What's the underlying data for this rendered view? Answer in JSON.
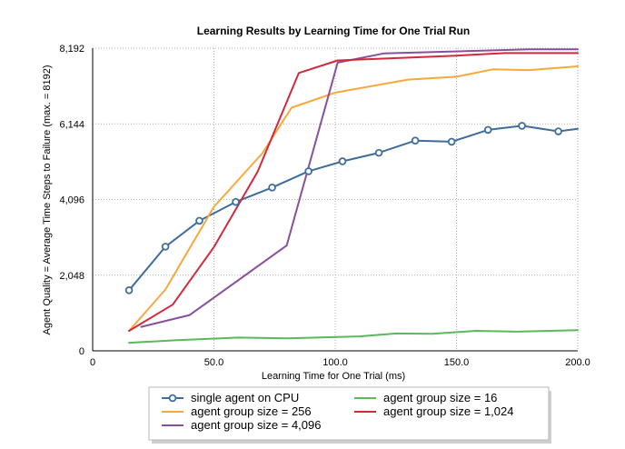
{
  "chart_data": {
    "type": "line",
    "title": "Learning Results by Learning Time for One Trial Run",
    "xlabel": "Learning Time for One Trial (ms)",
    "ylabel": "Agent Quality = Average Time Steps to Failure (max. = 8192)",
    "xlim": [
      0,
      200
    ],
    "ylim": [
      0,
      8192
    ],
    "xticks": [
      0,
      50,
      100,
      150,
      200
    ],
    "xtick_labels": [
      "0",
      "50.0",
      "100.0",
      "150.0",
      "200.0"
    ],
    "yticks": [
      0,
      2048,
      4096,
      6144,
      8192
    ],
    "ytick_labels": [
      "0",
      "2,048",
      "4,096",
      "6,144",
      "8,192"
    ],
    "grid": true,
    "legend_position": "bottom",
    "series": [
      {
        "name": "single agent on CPU",
        "color": "#3e6d9c",
        "marker": "circle",
        "x": [
          15,
          30,
          44,
          59,
          74,
          89,
          103,
          118,
          133,
          148,
          163,
          177,
          192,
          200
        ],
        "y": [
          1640,
          2820,
          3520,
          4030,
          4420,
          4860,
          5130,
          5360,
          5690,
          5660,
          5980,
          6090,
          5940,
          6010
        ]
      },
      {
        "name": "agent group size = 16",
        "color": "#5cb85c",
        "marker": "none",
        "x": [
          15,
          35,
          60,
          80,
          110,
          125,
          140,
          158,
          175,
          200
        ],
        "y": [
          220,
          290,
          360,
          340,
          390,
          470,
          460,
          540,
          520,
          560
        ]
      },
      {
        "name": "agent group size = 256",
        "color": "#f5a93b",
        "marker": "none",
        "x": [
          15,
          30,
          50,
          70,
          82,
          100,
          130,
          150,
          165,
          180,
          200
        ],
        "y": [
          540,
          1660,
          3900,
          5350,
          6580,
          6990,
          7340,
          7420,
          7620,
          7600,
          7700
        ]
      },
      {
        "name": "agent group size = 4,096",
        "color": "#8a4f9c",
        "marker": "none",
        "x": [
          20,
          40,
          80,
          101,
          120,
          180,
          200
        ],
        "y": [
          650,
          970,
          2850,
          7800,
          8050,
          8160,
          8160
        ]
      },
      {
        "name": "agent group size = 1,024",
        "color": "#d2293d",
        "marker": "none",
        "x": [
          15,
          33,
          50,
          68,
          85,
          101,
          150,
          170,
          200
        ],
        "y": [
          540,
          1250,
          2810,
          4850,
          7520,
          7860,
          7990,
          8060,
          8060
        ]
      }
    ]
  }
}
